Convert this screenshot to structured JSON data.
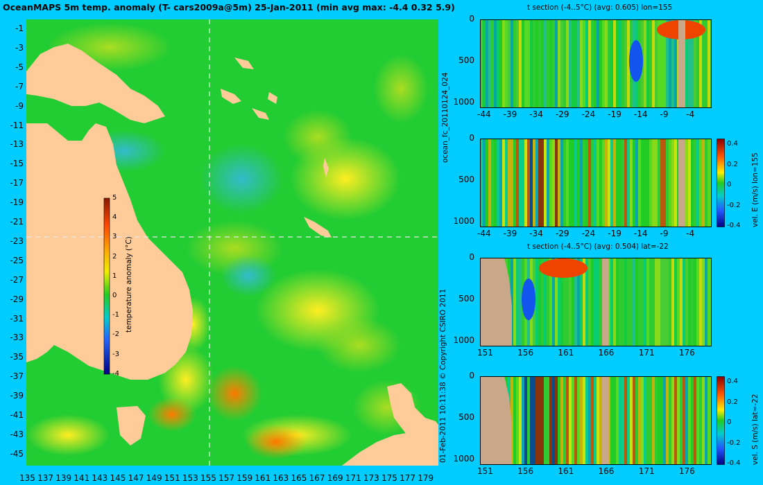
{
  "map": {
    "title": "OceanMAPS 5m temp. anomaly (T- cars2009a@5m) 25-Jan-2011 (min avg max: -4.4 0.32 5.9)",
    "x_ticks": [
      "135",
      "137",
      "139",
      "141",
      "143",
      "145",
      "147",
      "149",
      "151",
      "153",
      "155",
      "157",
      "159",
      "161",
      "163",
      "165",
      "167",
      "169",
      "171",
      "173",
      "175",
      "177",
      "179"
    ],
    "y_ticks": [
      "-1",
      "-3",
      "-5",
      "-7",
      "-9",
      "-11",
      "-13",
      "-15",
      "-17",
      "-19",
      "-21",
      "-23",
      "-25",
      "-27",
      "-29",
      "-31",
      "-33",
      "-35",
      "-37",
      "-39",
      "-41",
      "-43",
      "-45"
    ],
    "colorbar": {
      "label": "temperature anomaly (°C)",
      "ticks": [
        "5",
        "4",
        "3",
        "2",
        "1",
        "0",
        "-1",
        "-2",
        "-3",
        "-4"
      ]
    },
    "crosshair": {
      "lon": 155,
      "lat": -22
    }
  },
  "sections": [
    {
      "title": "t section (-4..5°C) (avg: 0.605) lon=155",
      "x_ticks": [
        "-44",
        "-39",
        "-34",
        "-29",
        "-24",
        "-19",
        "-14",
        "-9",
        "-4"
      ],
      "y_ticks": [
        "0",
        "500",
        "1000"
      ]
    },
    {
      "title": "",
      "x_ticks": [
        "-44",
        "-39",
        "-34",
        "-29",
        "-24",
        "-19",
        "-14",
        "-9",
        "-4"
      ],
      "y_ticks": [
        "0",
        "500",
        "1000"
      ],
      "colorbar_ticks": [
        "0.4",
        "0.2",
        "0",
        "-0.2",
        "-0.4"
      ],
      "colorbar_label": "vel. E (m/s) lon=155"
    },
    {
      "title": "t section (-4..5°C) (avg: 0.504) lat=-22",
      "x_ticks": [
        "151",
        "156",
        "161",
        "166",
        "171",
        "176"
      ],
      "y_ticks": [
        "0",
        "500",
        "1000"
      ]
    },
    {
      "title": "",
      "x_ticks": [
        "151",
        "156",
        "161",
        "166",
        "171",
        "176"
      ],
      "y_ticks": [
        "0",
        "500",
        "1000"
      ],
      "colorbar_ticks": [
        "0.4",
        "0.2",
        "0",
        "-0.2",
        "-0.4"
      ],
      "colorbar_label": "vel. S (m/s) lat=-22"
    }
  ],
  "side_labels": {
    "run": "ocean_fc_20110124_024",
    "copyright": "01-Feb-2011 10:11:38   © Copyright CSIRO 2011"
  },
  "colors": {
    "background": "#00ccff",
    "land": "#ffcc99",
    "section_land": "#c8a888",
    "ocean": "#22cc22"
  }
}
